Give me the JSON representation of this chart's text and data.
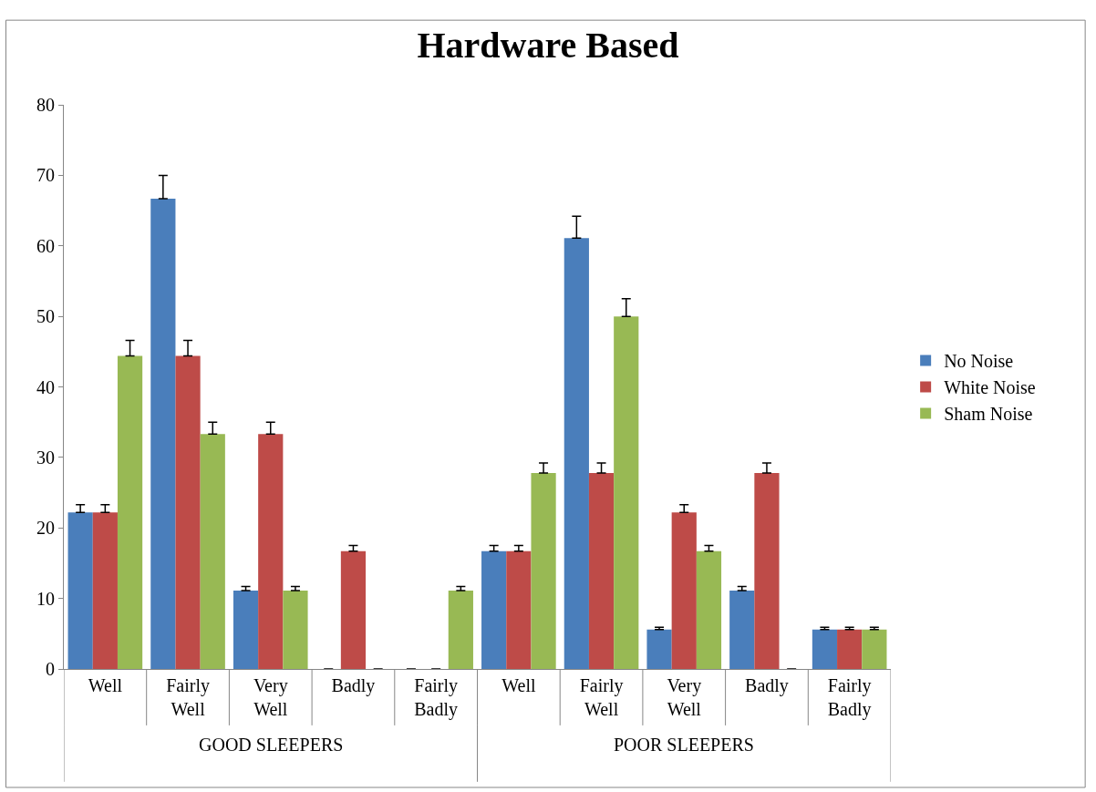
{
  "chart_data": {
    "type": "bar",
    "title": "Hardware Based",
    "categories": [
      "Well",
      "Fairly Well",
      "Very Well",
      "Badly",
      "Fairly Badly",
      "Well",
      "Fairly Well",
      "Very Well",
      "Badly",
      "Fairly Badly"
    ],
    "series": [
      {
        "name": "No Noise",
        "color": "#4a7ebb",
        "values": [
          22.2,
          66.7,
          11.1,
          0,
          0,
          16.7,
          61.1,
          5.6,
          11.1,
          5.6
        ],
        "errors": [
          [
            22.2,
            23.3
          ],
          [
            66.7,
            70.0
          ],
          [
            11.1,
            11.7
          ],
          null,
          null,
          [
            16.7,
            17.5
          ],
          [
            61.1,
            64.2
          ],
          [
            5.6,
            5.9
          ],
          [
            11.1,
            11.7
          ],
          [
            5.6,
            5.9
          ]
        ]
      },
      {
        "name": "White Noise",
        "color": "#be4b48",
        "values": [
          22.2,
          44.4,
          33.3,
          16.7,
          0,
          16.7,
          27.8,
          22.2,
          27.8,
          5.6
        ],
        "errors": [
          [
            22.2,
            23.3
          ],
          [
            44.4,
            46.6
          ],
          [
            33.3,
            35.0
          ],
          [
            16.7,
            17.5
          ],
          null,
          [
            16.7,
            17.5
          ],
          [
            27.8,
            29.2
          ],
          [
            22.2,
            23.3
          ],
          [
            27.8,
            29.2
          ],
          [
            5.6,
            5.9
          ]
        ]
      },
      {
        "name": "Sham Noise",
        "color": "#98b954",
        "values": [
          44.4,
          33.3,
          11.1,
          0,
          11.1,
          27.8,
          50.0,
          16.7,
          0,
          5.6
        ],
        "errors": [
          [
            44.4,
            46.6
          ],
          [
            33.3,
            35.0
          ],
          [
            11.1,
            11.7
          ],
          null,
          [
            11.1,
            11.7
          ],
          [
            27.8,
            29.2
          ],
          [
            50.0,
            52.5
          ],
          [
            16.7,
            17.5
          ],
          null,
          [
            5.6,
            5.9
          ]
        ]
      }
    ],
    "annotations": [
      "GOOD SLEEPERS",
      "POOR SLEEPERS"
    ],
    "ylim": [
      0,
      80
    ],
    "yticks": [
      0,
      10,
      20,
      30,
      40,
      50,
      60,
      70,
      80
    ],
    "legend": "right"
  }
}
